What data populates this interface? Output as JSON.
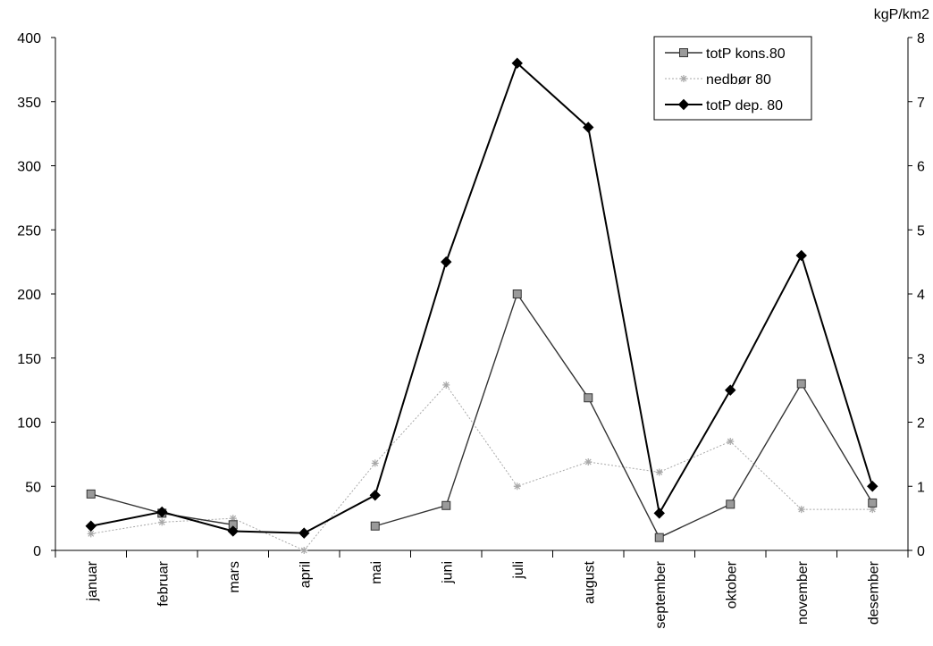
{
  "chart_data": {
    "type": "line",
    "categories": [
      "januar",
      "februar",
      "mars",
      "april",
      "mai",
      "juni",
      "juli",
      "august",
      "september",
      "oktober",
      "november",
      "desember"
    ],
    "y_left": {
      "min": 0,
      "max": 400,
      "ticks": [
        0,
        50,
        100,
        150,
        200,
        250,
        300,
        350,
        400
      ]
    },
    "y_right": {
      "min": 0,
      "max": 8,
      "ticks": [
        0,
        1,
        2,
        3,
        4,
        5,
        6,
        7,
        8
      ],
      "unit_label": "kgP/km2"
    },
    "grid": false,
    "legend_position": "top-right",
    "series": [
      {
        "name": "totP kons.80",
        "axis": "left",
        "color": "#333333",
        "marker": "square",
        "values": [
          44,
          29,
          20,
          null,
          19,
          35,
          200,
          119,
          10,
          36,
          130,
          37
        ]
      },
      {
        "name": "nedbør 80",
        "axis": "left",
        "color": "#a8a8a8",
        "marker": "star",
        "values": [
          13,
          22,
          25,
          0,
          68,
          129,
          50,
          69,
          61,
          85,
          32,
          32
        ]
      },
      {
        "name": "totP dep. 80",
        "axis": "right",
        "color": "#000000",
        "marker": "diamond",
        "values": [
          0.38,
          0.6,
          0.3,
          0.27,
          0.86,
          4.5,
          7.6,
          6.6,
          0.58,
          2.5,
          4.6,
          1.0
        ]
      }
    ]
  }
}
